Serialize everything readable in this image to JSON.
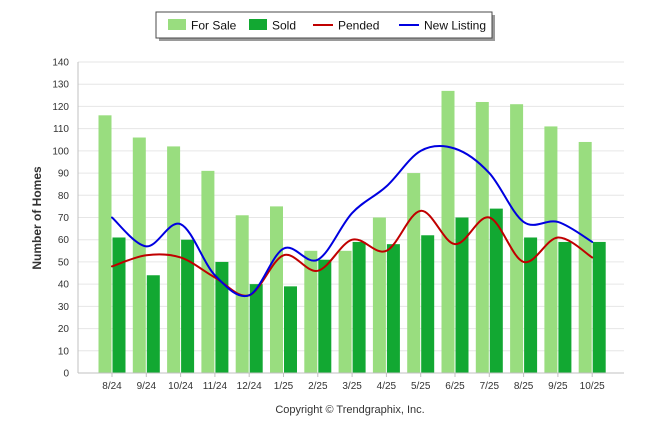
{
  "chart_data": {
    "type": "bar",
    "title": "",
    "xlabel": "",
    "ylabel": "Number of Homes",
    "ylim": [
      0,
      140
    ],
    "ytick_step": 10,
    "categories": [
      "8/24",
      "9/24",
      "10/24",
      "11/24",
      "12/24",
      "1/25",
      "2/25",
      "3/25",
      "4/25",
      "5/25",
      "6/25",
      "7/25",
      "8/25",
      "9/25",
      "10/25"
    ],
    "series": [
      {
        "name": "For Sale",
        "kind": "bar",
        "color": "#99dd7f",
        "values": [
          116,
          106,
          102,
          91,
          71,
          75,
          55,
          55,
          70,
          90,
          127,
          122,
          121,
          111,
          104
        ]
      },
      {
        "name": "Sold",
        "kind": "bar",
        "color": "#12a832",
        "values": [
          61,
          44,
          60,
          50,
          40,
          39,
          51,
          59,
          58,
          62,
          70,
          74,
          61,
          59,
          59
        ]
      },
      {
        "name": "Pended",
        "kind": "line",
        "color": "#c00000",
        "values": [
          48,
          53,
          52,
          43,
          35,
          53,
          46,
          60,
          55,
          73,
          58,
          70,
          50,
          61,
          52
        ]
      },
      {
        "name": "New Listing",
        "kind": "line",
        "color": "#0000e0",
        "values": [
          70,
          57,
          67,
          44,
          35,
          56,
          51,
          72,
          84,
          100,
          101,
          90,
          68,
          68,
          59
        ]
      }
    ],
    "legend_position": "top-center",
    "grid": true
  },
  "footer": {
    "copyright": "Copyright © Trendgraphix, Inc."
  }
}
